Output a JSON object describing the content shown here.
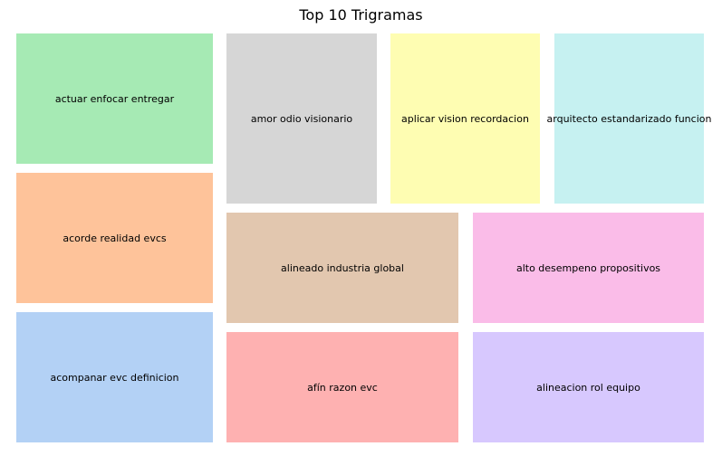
{
  "chart_data": {
    "type": "treemap",
    "title": "Top 10 Trigramas",
    "items": [
      {
        "label": "actuar enfocar entregar",
        "value": 1,
        "color": "#a6eab4"
      },
      {
        "label": "acorde realidad evcs",
        "value": 1,
        "color": "#fec39a"
      },
      {
        "label": "acompanar evc definicion",
        "value": 1,
        "color": "#b3d1f5"
      },
      {
        "label": "amor odio visionario",
        "value": 1,
        "color": "#d6d6d6"
      },
      {
        "label": "aplicar vision recordacion",
        "value": 1,
        "color": "#fefdb2"
      },
      {
        "label": "arquitecto estandarizado funcion",
        "value": 1,
        "color": "#c6f1f1"
      },
      {
        "label": "alineado industria global",
        "value": 1,
        "color": "#e2c7af"
      },
      {
        "label": "alto desempeno propositivos",
        "value": 1,
        "color": "#fabce8"
      },
      {
        "label": "afín razon evc",
        "value": 1,
        "color": "#feb1b1"
      },
      {
        "label": "alineacion rol equipo",
        "value": 1,
        "color": "#d7c8fe"
      }
    ]
  }
}
